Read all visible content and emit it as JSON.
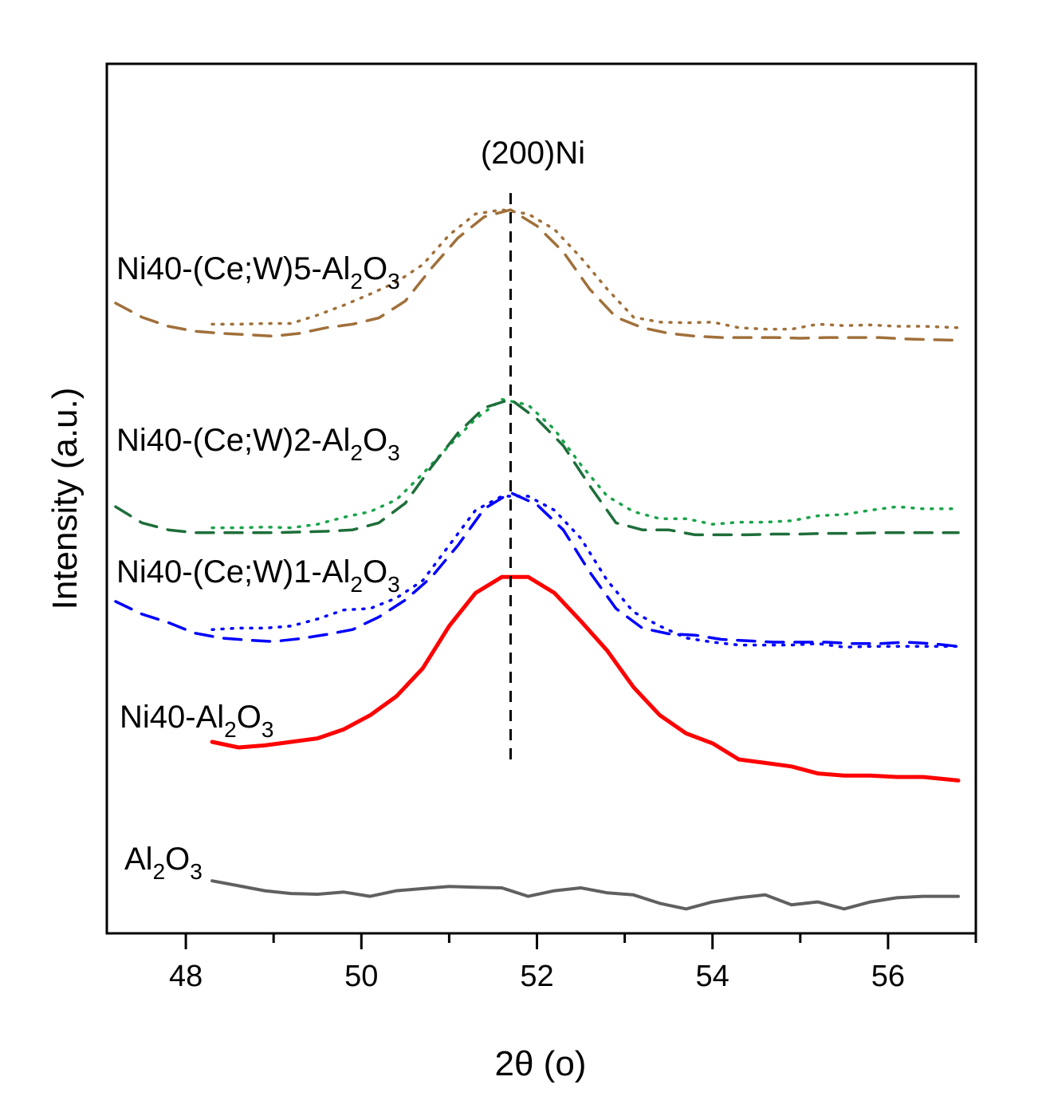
{
  "chart_data": {
    "type": "line",
    "title": "",
    "xlabel": "2θ (o)",
    "ylabel": "Intensity (a.u.)",
    "xlim": [
      47.1,
      57.0
    ],
    "ylim": [
      0,
      10
    ],
    "xticks": [
      48,
      50,
      52,
      54,
      56
    ],
    "xtick_labels": [
      "48",
      "50",
      "52",
      "54",
      "56"
    ],
    "minor_xticks": [
      49,
      51,
      53,
      55,
      57
    ],
    "yticks": [],
    "grid": false,
    "reference_line": {
      "x": 51.7,
      "label": "(200)Ni",
      "style": "dashed"
    },
    "series": [
      {
        "name": "Al2O3",
        "label_main": "Al",
        "label_sub1": "2",
        "label_mid": "O",
        "label_sub2": "3",
        "color": "#606060",
        "style": "solid",
        "x": [
          48.3,
          48.6,
          48.9,
          49.2,
          49.5,
          49.8,
          50.1,
          50.4,
          50.7,
          51.0,
          51.3,
          51.6,
          51.9,
          52.2,
          52.5,
          52.8,
          53.1,
          53.4,
          53.7,
          54.0,
          54.3,
          54.6,
          54.9,
          55.2,
          55.5,
          55.8,
          56.1,
          56.4,
          56.8
        ],
        "y": [
          0.52,
          0.45,
          0.38,
          0.34,
          0.33,
          0.36,
          0.3,
          0.38,
          0.41,
          0.44,
          0.43,
          0.42,
          0.3,
          0.38,
          0.42,
          0.35,
          0.32,
          0.2,
          0.12,
          0.22,
          0.28,
          0.32,
          0.18,
          0.22,
          0.12,
          0.22,
          0.28,
          0.3,
          0.3
        ]
      },
      {
        "name": "Ni40-Al2O3",
        "label_main": "Ni40-Al",
        "label_sub1": "2",
        "label_mid": "O",
        "label_sub2": "3",
        "color": "#ff0000",
        "style": "solid",
        "x": [
          48.3,
          48.6,
          48.9,
          49.2,
          49.5,
          49.8,
          50.1,
          50.4,
          50.7,
          51.0,
          51.3,
          51.6,
          51.9,
          52.2,
          52.5,
          52.8,
          53.1,
          53.4,
          53.7,
          54.0,
          54.3,
          54.6,
          54.9,
          55.2,
          55.5,
          55.8,
          56.1,
          56.4,
          56.8
        ],
        "y": [
          2.5,
          2.42,
          2.45,
          2.5,
          2.55,
          2.68,
          2.88,
          3.15,
          3.55,
          4.15,
          4.62,
          4.85,
          4.85,
          4.62,
          4.22,
          3.8,
          3.28,
          2.88,
          2.62,
          2.48,
          2.25,
          2.2,
          2.15,
          2.05,
          2.02,
          2.02,
          2.0,
          2.0,
          1.95
        ]
      },
      {
        "name": "Ni40-(Ce;W)1-Al2O3 (dotted)",
        "label_main": "Ni40-(Ce;W)1-Al",
        "label_sub1": "2",
        "label_mid": "O",
        "label_sub2": "3",
        "color": "#0000ff",
        "style": "dotted",
        "x": [
          48.3,
          48.6,
          48.9,
          49.2,
          49.5,
          49.8,
          50.1,
          50.4,
          50.7,
          51.0,
          51.3,
          51.6,
          51.9,
          52.2,
          52.5,
          52.8,
          53.1,
          53.4,
          53.7,
          54.0,
          54.3,
          54.6,
          54.9,
          55.2,
          55.5,
          55.8,
          56.1,
          56.4,
          56.8
        ],
        "y": [
          4.1,
          4.12,
          4.12,
          4.15,
          4.25,
          4.38,
          4.4,
          4.55,
          4.8,
          5.3,
          5.8,
          6.0,
          6.0,
          5.8,
          5.4,
          4.8,
          4.35,
          4.15,
          3.98,
          3.92,
          3.88,
          3.88,
          3.88,
          3.9,
          3.85,
          3.86,
          3.86,
          3.86,
          3.86
        ]
      },
      {
        "name": "Ni40-(Ce;W)1-Al2O3 (dashed)",
        "color": "#0000ff",
        "style": "dashed",
        "x": [
          47.2,
          47.5,
          47.8,
          48.1,
          48.4,
          48.7,
          49.0,
          49.3,
          49.6,
          49.9,
          50.2,
          50.5,
          50.8,
          51.1,
          51.4,
          51.7,
          52.0,
          52.3,
          52.6,
          52.9,
          53.2,
          53.5,
          53.8,
          54.1,
          54.4,
          54.7,
          55.0,
          55.3,
          55.6,
          55.9,
          56.2,
          56.5,
          56.8
        ],
        "y": [
          4.5,
          4.32,
          4.2,
          4.05,
          3.98,
          3.95,
          3.93,
          3.97,
          4.03,
          4.1,
          4.28,
          4.52,
          4.85,
          5.3,
          5.82,
          6.05,
          5.88,
          5.52,
          4.92,
          4.4,
          4.12,
          4.04,
          4.02,
          3.96,
          3.94,
          3.92,
          3.92,
          3.92,
          3.9,
          3.9,
          3.92,
          3.9,
          3.86
        ]
      },
      {
        "name": "Ni40-(Ce;W)2-Al2O3 (dotted)",
        "label_main": "Ni40-(Ce;W)2-Al",
        "label_sub1": "2",
        "label_mid": "O",
        "label_sub2": "3",
        "color": "#1aa34a",
        "style": "dotted",
        "x": [
          48.3,
          48.6,
          48.9,
          49.2,
          49.5,
          49.8,
          50.1,
          50.4,
          50.7,
          51.0,
          51.3,
          51.6,
          51.9,
          52.2,
          52.5,
          52.8,
          53.1,
          53.4,
          53.7,
          54.0,
          54.3,
          54.6,
          54.9,
          55.2,
          55.5,
          55.8,
          56.1,
          56.4,
          56.8
        ],
        "y": [
          5.55,
          5.55,
          5.56,
          5.55,
          5.6,
          5.7,
          5.78,
          5.95,
          6.32,
          6.72,
          7.1,
          7.38,
          7.3,
          6.95,
          6.45,
          6.0,
          5.78,
          5.68,
          5.68,
          5.6,
          5.63,
          5.63,
          5.65,
          5.72,
          5.74,
          5.8,
          5.85,
          5.82,
          5.82
        ]
      },
      {
        "name": "Ni40-(Ce;W)2-Al2O3 (dashed)",
        "color": "#1e6e3a",
        "style": "dashed",
        "x": [
          47.2,
          47.5,
          47.8,
          48.1,
          48.4,
          48.7,
          49.0,
          49.3,
          49.6,
          49.9,
          50.2,
          50.5,
          50.8,
          51.1,
          51.4,
          51.7,
          52.0,
          52.3,
          52.6,
          52.9,
          53.2,
          53.5,
          53.8,
          54.1,
          54.4,
          54.7,
          55.0,
          55.3,
          55.6,
          55.9,
          56.2,
          56.5,
          56.8
        ],
        "y": [
          5.85,
          5.62,
          5.52,
          5.48,
          5.48,
          5.48,
          5.48,
          5.49,
          5.5,
          5.52,
          5.62,
          5.9,
          6.42,
          6.9,
          7.26,
          7.38,
          7.1,
          6.72,
          6.15,
          5.62,
          5.52,
          5.52,
          5.45,
          5.45,
          5.45,
          5.46,
          5.46,
          5.47,
          5.47,
          5.48,
          5.48,
          5.48,
          5.48
        ]
      },
      {
        "name": "Ni40-(Ce;W)5-Al2O3 (dotted)",
        "label_main": "Ni40-(Ce;W)5-Al",
        "label_sub1": "2",
        "label_mid": "O",
        "label_sub2": "3",
        "color": "#a0703a",
        "style": "dotted",
        "x": [
          48.3,
          48.6,
          48.9,
          49.2,
          49.5,
          49.8,
          50.1,
          50.4,
          50.7,
          51.0,
          51.3,
          51.6,
          51.9,
          52.2,
          52.5,
          52.8,
          53.1,
          53.4,
          53.7,
          54.0,
          54.3,
          54.6,
          54.9,
          55.2,
          55.5,
          55.8,
          56.1,
          56.4,
          56.8
        ],
        "y": [
          8.45,
          8.45,
          8.46,
          8.46,
          8.58,
          8.72,
          8.88,
          9.05,
          9.3,
          9.72,
          10.02,
          10.08,
          10.02,
          9.8,
          9.4,
          8.95,
          8.55,
          8.48,
          8.47,
          8.48,
          8.4,
          8.38,
          8.38,
          8.45,
          8.43,
          8.44,
          8.42,
          8.42,
          8.4
        ]
      },
      {
        "name": "Ni40-(Ce;W)5-Al2O3 (dashed)",
        "color": "#a0703a",
        "style": "dashed",
        "x": [
          47.2,
          47.5,
          47.8,
          48.1,
          48.4,
          48.7,
          49.0,
          49.3,
          49.6,
          49.9,
          50.2,
          50.5,
          50.8,
          51.1,
          51.4,
          51.7,
          52.0,
          52.3,
          52.6,
          52.9,
          53.2,
          53.5,
          53.8,
          54.1,
          54.4,
          54.7,
          55.0,
          55.3,
          55.6,
          55.9,
          56.2,
          56.5,
          56.8
        ],
        "y": [
          8.75,
          8.55,
          8.42,
          8.35,
          8.32,
          8.3,
          8.28,
          8.32,
          8.4,
          8.45,
          8.54,
          8.78,
          9.25,
          9.68,
          9.98,
          10.08,
          9.85,
          9.48,
          8.95,
          8.55,
          8.4,
          8.32,
          8.28,
          8.26,
          8.26,
          8.26,
          8.25,
          8.26,
          8.26,
          8.26,
          8.24,
          8.23,
          8.22
        ]
      }
    ]
  }
}
